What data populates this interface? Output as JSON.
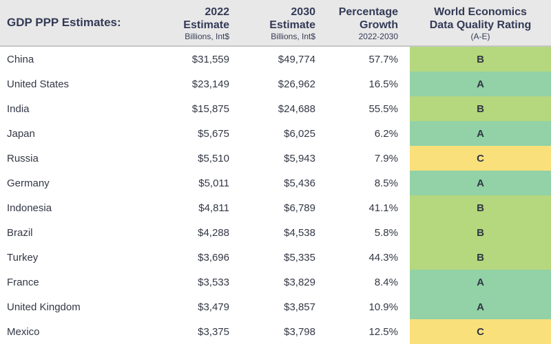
{
  "table": {
    "title": "GDP PPP Estimates:",
    "columns": [
      {
        "line1": "2022",
        "line2": "Estimate",
        "sub": "Billions, Int$"
      },
      {
        "line1": "2030",
        "line2": "Estimate",
        "sub": "Billions, Int$"
      },
      {
        "line1": "Percentage",
        "line2": "Growth",
        "sub": "2022-2030"
      },
      {
        "line1": "World Economics",
        "line2": "Data Quality Rating",
        "sub": "(A-E)"
      }
    ],
    "rows": [
      {
        "country": "China",
        "est2022": "$31,559",
        "est2030": "$49,774",
        "growth": "57.7%",
        "rating": "B"
      },
      {
        "country": "United States",
        "est2022": "$23,149",
        "est2030": "$26,962",
        "growth": "16.5%",
        "rating": "A"
      },
      {
        "country": "India",
        "est2022": "$15,875",
        "est2030": "$24,688",
        "growth": "55.5%",
        "rating": "B"
      },
      {
        "country": "Japan",
        "est2022": "$5,675",
        "est2030": "$6,025",
        "growth": "6.2%",
        "rating": "A"
      },
      {
        "country": "Russia",
        "est2022": "$5,510",
        "est2030": "$5,943",
        "growth": "7.9%",
        "rating": "C"
      },
      {
        "country": "Germany",
        "est2022": "$5,011",
        "est2030": "$5,436",
        "growth": "8.5%",
        "rating": "A"
      },
      {
        "country": "Indonesia",
        "est2022": "$4,811",
        "est2030": "$6,789",
        "growth": "41.1%",
        "rating": "B"
      },
      {
        "country": "Brazil",
        "est2022": "$4,288",
        "est2030": "$4,538",
        "growth": "5.8%",
        "rating": "B"
      },
      {
        "country": "Turkey",
        "est2022": "$3,696",
        "est2030": "$5,335",
        "growth": "44.3%",
        "rating": "B"
      },
      {
        "country": "France",
        "est2022": "$3,533",
        "est2030": "$3,829",
        "growth": "8.4%",
        "rating": "A"
      },
      {
        "country": "United Kingdom",
        "est2022": "$3,479",
        "est2030": "$3,857",
        "growth": "10.9%",
        "rating": "A"
      },
      {
        "country": "Mexico",
        "est2022": "$3,375",
        "est2030": "$3,798",
        "growth": "12.5%",
        "rating": "C"
      }
    ]
  },
  "colors": {
    "header_bg": "#e8e8e8",
    "header_text": "#333a56",
    "rating_A": "#92d2a6",
    "rating_B": "#b5d77d",
    "rating_C": "#fae07b"
  }
}
